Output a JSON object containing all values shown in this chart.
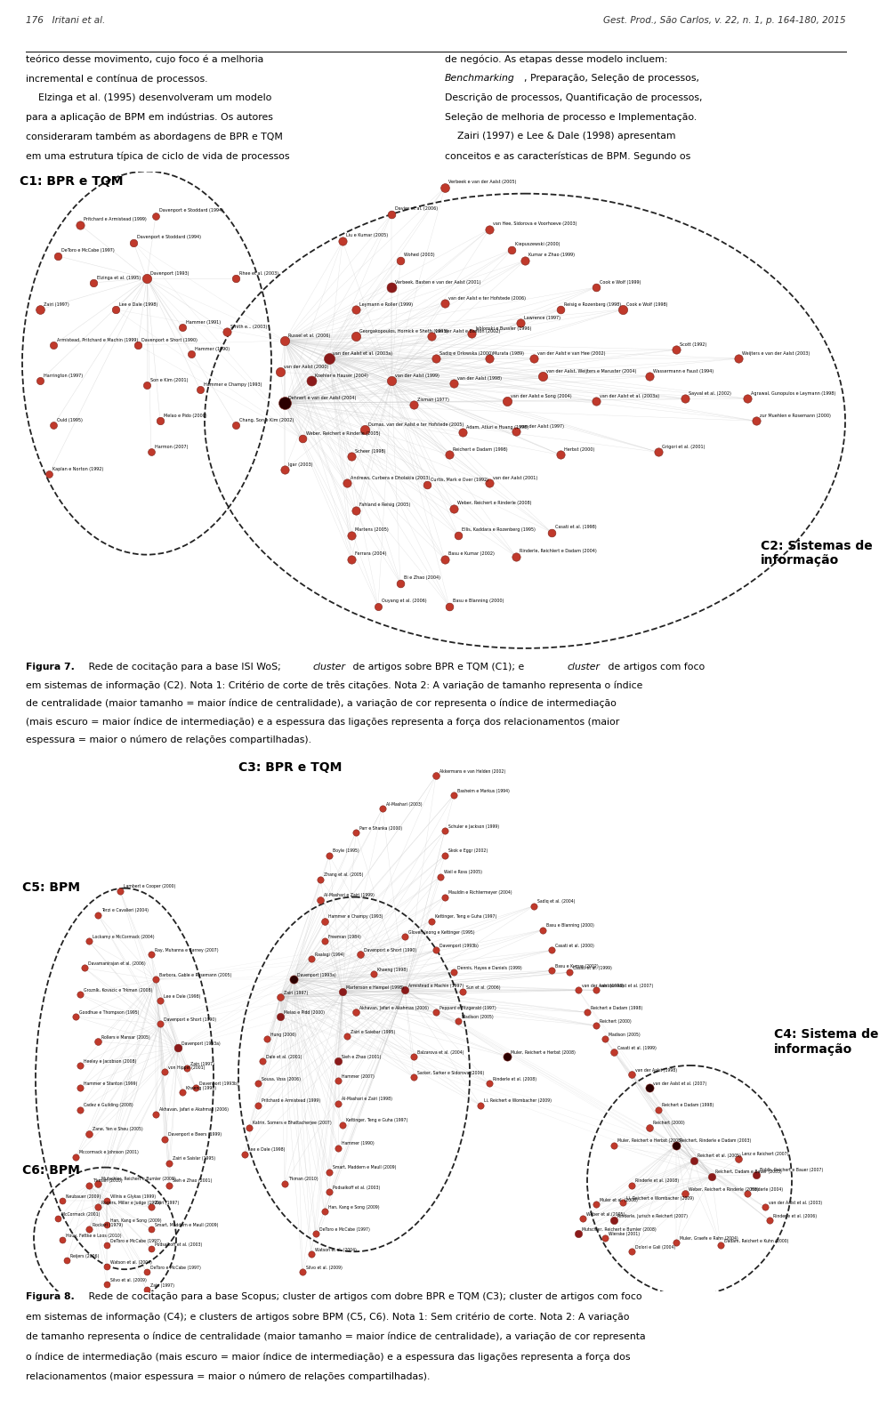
{
  "page_width": 9.6,
  "page_height": 15.53,
  "bg_color": "#ffffff",
  "header_left": "176   Iritani et al.",
  "header_right": "Gest. Prod., São Carlos, v. 22, n. 1, p. 164-180, 2015",
  "fig7_label1": "C1: BPR e TQM",
  "fig7_label2": "C2: Sistemas de\ninformação",
  "fig8_label1": "C3: BPR e TQM",
  "fig8_label2": "C4: Sistema de\ninformação",
  "fig8_label3": "C5: BPM",
  "fig8_label4": "C6: BPM",
  "node_color_light": "#d9534f",
  "node_color_dark": "#6b0000",
  "edge_color": "#cccccc",
  "text_color": "#111111"
}
